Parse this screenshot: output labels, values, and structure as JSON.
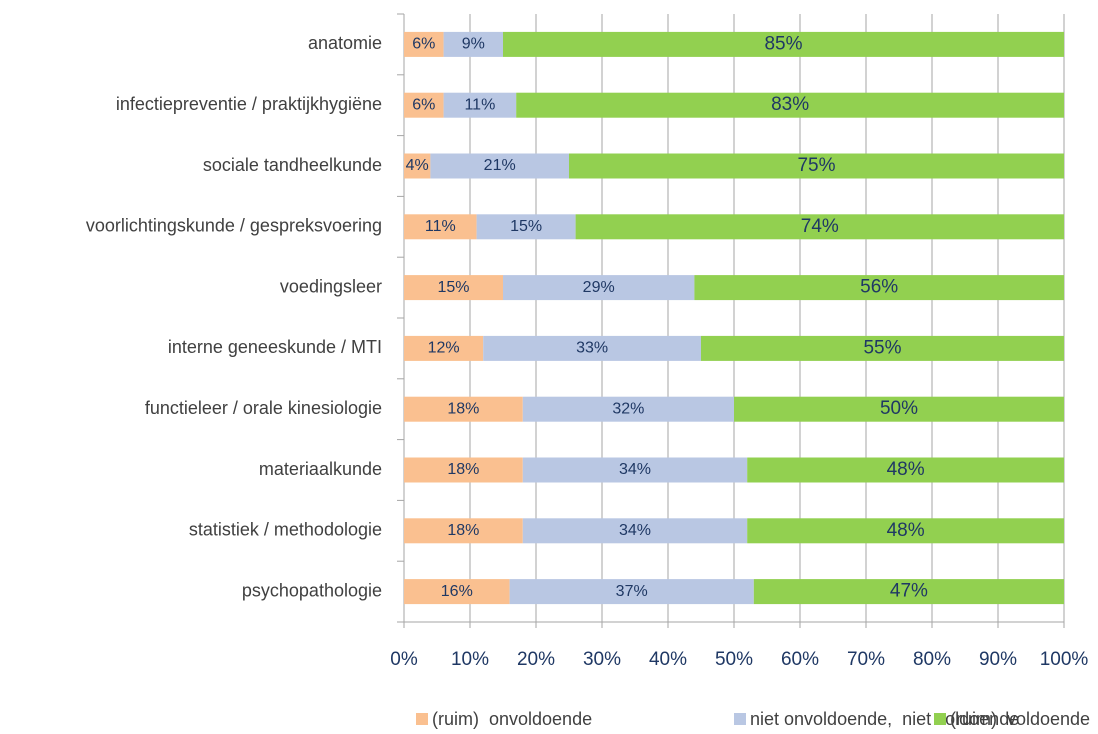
{
  "chart_data": {
    "type": "bar",
    "orientation": "horizontal",
    "stacked": true,
    "categories": [
      "anatomie",
      "infectiepreventie / praktijkhygiëne",
      "sociale tandheelkunde",
      "voorlichtingskunde / gespreksvoering",
      "voedingsleer",
      "interne geneeskunde / MTI",
      "functieleer / orale kinesiologie",
      "materiaalkunde",
      "statistiek / methodologie",
      "psychopathologie"
    ],
    "series": [
      {
        "name": "(ruim)  onvoldoende",
        "color": "#fac090",
        "values": [
          6,
          6,
          4,
          11,
          15,
          12,
          18,
          18,
          18,
          16
        ],
        "value_labels": [
          "6%",
          "6%",
          "4%",
          "11%",
          "15%",
          "12%",
          "18%",
          "18%",
          "18%",
          "16%"
        ]
      },
      {
        "name": "niet onvoldoende,  niet voldoende",
        "color": "#b9c7e3",
        "values": [
          9,
          11,
          21,
          15,
          29,
          33,
          32,
          34,
          34,
          37
        ],
        "value_labels": [
          "9%",
          "11%",
          "21%",
          "15%",
          "29%",
          "33%",
          "32%",
          "34%",
          "34%",
          "37%"
        ]
      },
      {
        "name": "(ruim)  voldoende",
        "color": "#92d050",
        "values": [
          85,
          83,
          75,
          74,
          56,
          55,
          50,
          48,
          48,
          47
        ],
        "value_labels": [
          "85%",
          "83%",
          "75%",
          "74%",
          "56%",
          "55%",
          "50%",
          "48%",
          "48%",
          "47%"
        ]
      }
    ],
    "xlim": [
      0,
      100
    ],
    "xticks": [
      {
        "value": 0,
        "label": "0%"
      },
      {
        "value": 10,
        "label": "10%"
      },
      {
        "value": 20,
        "label": "20%"
      },
      {
        "value": 30,
        "label": "30%"
      },
      {
        "value": 40,
        "label": "40%"
      },
      {
        "value": 50,
        "label": "50%"
      },
      {
        "value": 60,
        "label": "60%"
      },
      {
        "value": 70,
        "label": "70%"
      },
      {
        "value": 80,
        "label": "80%"
      },
      {
        "value": 90,
        "label": "90%"
      },
      {
        "value": 100,
        "label": "100%"
      }
    ],
    "grid": true,
    "legend": "bottom"
  }
}
